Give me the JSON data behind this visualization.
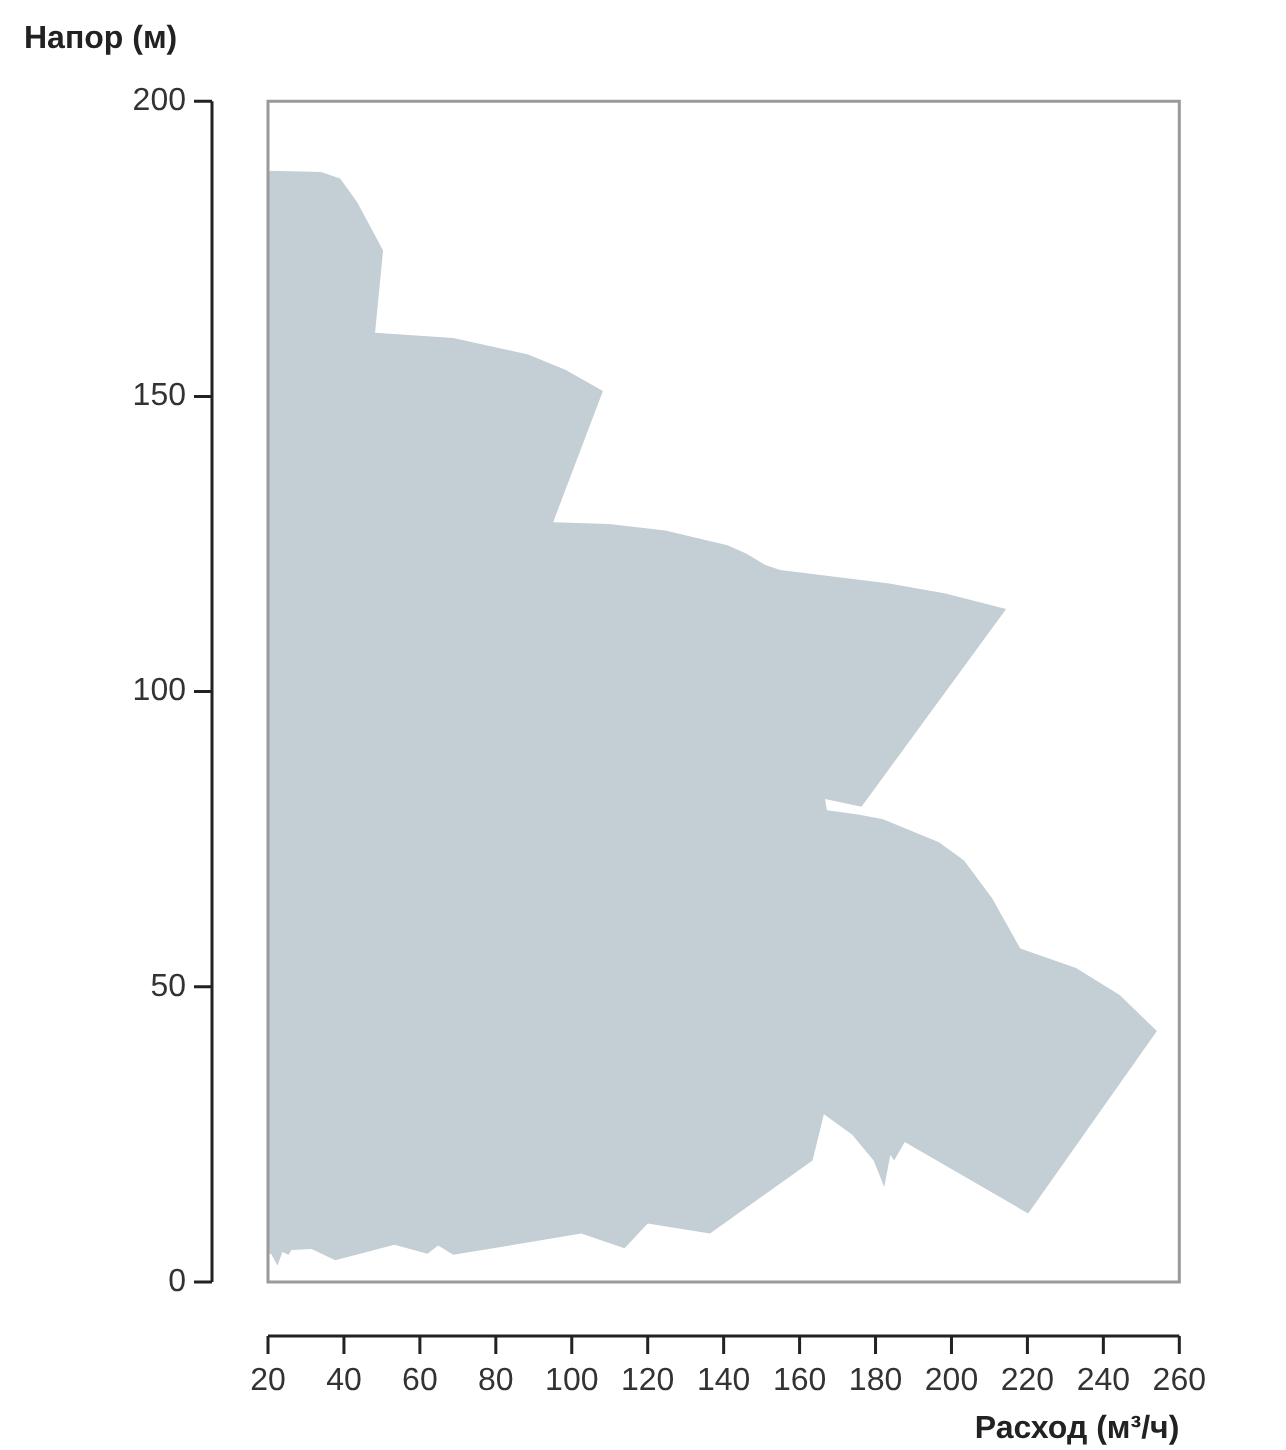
{
  "chart_data": {
    "type": "area",
    "xlabel": "Расход (м³/ч)",
    "ylabel": "Напор (м)",
    "color": "#c3ced5",
    "x": [
      20,
      34,
      39,
      43.5,
      50.3,
      48.2,
      68.8,
      88.5,
      98.3,
      108.2,
      95.1,
      109.8,
      124.6,
      141,
      145.9,
      150.8,
      154.9,
      183.6,
      198.4,
      214.4,
      176.3,
      166.7,
      167.2,
      175.4,
      182,
      196.7,
      203.3,
      210.7,
      218.1,
      232.8,
      244.3,
      254.1,
      220.2,
      187.7,
      184.9,
      183.9,
      182.3,
      179.5,
      173.8,
      166.4,
      163.4,
      136.4,
      120,
      113.9,
      102.5,
      68.8,
      64.8,
      62,
      53.3,
      37.7,
      31.5,
      26.2,
      25.4,
      23.8,
      22.5,
      20.8,
      20
    ],
    "values": [
      188.2,
      188,
      186.9,
      182.9,
      174.7,
      160.8,
      159.9,
      157.1,
      154.5,
      150.9,
      128.7,
      128.4,
      127.3,
      124.8,
      123.4,
      121.5,
      120.6,
      118.3,
      116.6,
      114,
      80.5,
      81.8,
      79.9,
      79.2,
      78.4,
      74.5,
      71.4,
      65,
      56.5,
      53.2,
      48.6,
      42.5,
      11.6,
      23.7,
      20.6,
      21.5,
      16.1,
      20.6,
      25,
      28.4,
      20.6,
      8.2,
      9.9,
      5.7,
      8.2,
      4.6,
      6.2,
      4.8,
      6.3,
      3.7,
      5.6,
      5.4,
      4.6,
      5.1,
      2.8,
      4.8,
      4.8
    ],
    "xlim": [
      20,
      260
    ],
    "xticks": [
      20,
      40,
      60,
      80,
      100,
      120,
      140,
      160,
      180,
      200,
      220,
      240,
      260
    ],
    "ylim": [
      0,
      200
    ],
    "yticks": [
      0,
      50,
      100,
      150,
      200
    ]
  }
}
